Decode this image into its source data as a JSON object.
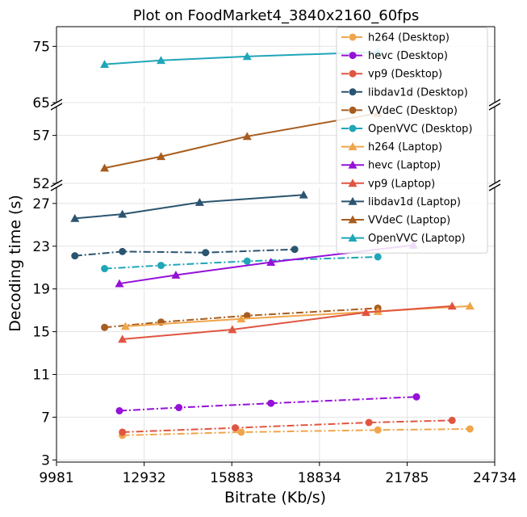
{
  "chart_data": {
    "type": "line",
    "title": "Plot on FoodMarket4_3840x2160_60fps",
    "xlabel": "Bitrate (Kb/s)",
    "ylabel": "Decoding time (s)",
    "xlim": [
      9981,
      24734
    ],
    "x_ticks": [
      "9981",
      "12932",
      "15883",
      "18834",
      "21785",
      "24734"
    ],
    "panels": [
      {
        "id": "top",
        "ylim": [
          65,
          78.5
        ],
        "y_ticks": [
          "65",
          "75"
        ]
      },
      {
        "id": "middle",
        "ylim": [
          52,
          60
        ],
        "y_ticks": [
          "52",
          "57"
        ]
      },
      {
        "id": "bottom",
        "ylim": [
          2.8,
          28.5
        ],
        "y_ticks": [
          "3",
          "7",
          "11",
          "15",
          "19",
          "23",
          "27"
        ]
      }
    ],
    "grid": true,
    "legend_position": "top-right",
    "series": [
      {
        "name": "h264 (Desktop)",
        "color": "#f0a54a",
        "marker": "circle",
        "linestyle": "dashdot",
        "panel": "bottom",
        "x": [
          12200,
          16200,
          20800,
          23900
        ],
        "y": [
          5.3,
          5.6,
          5.8,
          5.9
        ]
      },
      {
        "name": "hevc (Desktop)",
        "color": "#9510d8",
        "marker": "circle",
        "linestyle": "dashdot",
        "panel": "bottom",
        "x": [
          12100,
          14100,
          17200,
          22100
        ],
        "y": [
          7.6,
          7.9,
          8.3,
          8.9
        ]
      },
      {
        "name": "vp9 (Desktop)",
        "color": "#e05540",
        "marker": "circle",
        "linestyle": "dashdot",
        "panel": "bottom",
        "x": [
          12200,
          16000,
          20500,
          23300
        ],
        "y": [
          5.6,
          6.0,
          6.5,
          6.7
        ]
      },
      {
        "name": "libdav1d (Desktop)",
        "color": "#2b5470",
        "marker": "circle",
        "linestyle": "dashdot",
        "panel": "bottom",
        "x": [
          10600,
          12200,
          15000,
          18000
        ],
        "y": [
          22.1,
          22.5,
          22.4,
          22.7
        ]
      },
      {
        "name": "VVdeC (Desktop)",
        "color": "#a85d1e",
        "marker": "circle",
        "linestyle": "dashdot",
        "panel": "bottom",
        "x": [
          11600,
          13500,
          16400,
          20800
        ],
        "y": [
          15.4,
          15.9,
          16.5,
          17.2
        ]
      },
      {
        "name": "OpenVVC (Desktop)",
        "color": "#1fa6b8",
        "marker": "circle",
        "linestyle": "dashdot",
        "panel": "bottom",
        "x": [
          11600,
          13500,
          16400,
          20800
        ],
        "y": [
          20.9,
          21.2,
          21.6,
          22.0
        ]
      },
      {
        "name": "h264 (Laptop)",
        "color": "#f0a54a",
        "marker": "triangle",
        "linestyle": "solid",
        "panel": "bottom",
        "x": [
          12300,
          16200,
          20800,
          23900
        ],
        "y": [
          15.5,
          16.2,
          16.9,
          17.4
        ]
      },
      {
        "name": "hevc (Laptop)",
        "color": "#9510d8",
        "marker": "triangle",
        "linestyle": "solid",
        "panel": "bottom",
        "x": [
          12100,
          14000,
          17200,
          22000
        ],
        "y": [
          19.5,
          20.3,
          21.5,
          23.1
        ]
      },
      {
        "name": "vp9 (Laptop)",
        "color": "#e05540",
        "marker": "triangle",
        "linestyle": "solid",
        "panel": "bottom",
        "x": [
          12200,
          15900,
          20400,
          23300
        ],
        "y": [
          14.3,
          15.2,
          16.8,
          17.4
        ]
      },
      {
        "name": "libdav1d (Laptop)",
        "color": "#2b5470",
        "marker": "triangle",
        "linestyle": "solid",
        "panel": "bottom",
        "x": [
          10600,
          12200,
          14800,
          18300
        ],
        "y": [
          25.6,
          26.0,
          27.1,
          27.8
        ]
      },
      {
        "name": "VVdeC (Laptop)",
        "color": "#a85d1e",
        "marker": "triangle",
        "linestyle": "solid",
        "panel": "middle",
        "x": [
          11600,
          13500,
          16400,
          20800
        ],
        "y": [
          53.6,
          54.8,
          56.9,
          59.3
        ]
      },
      {
        "name": "OpenVVC (Laptop)",
        "color": "#1fa6b8",
        "marker": "triangle",
        "linestyle": "solid",
        "panel": "top",
        "x": [
          11600,
          13500,
          16400,
          20800
        ],
        "y": [
          71.8,
          72.5,
          73.2,
          74.0
        ]
      }
    ]
  }
}
